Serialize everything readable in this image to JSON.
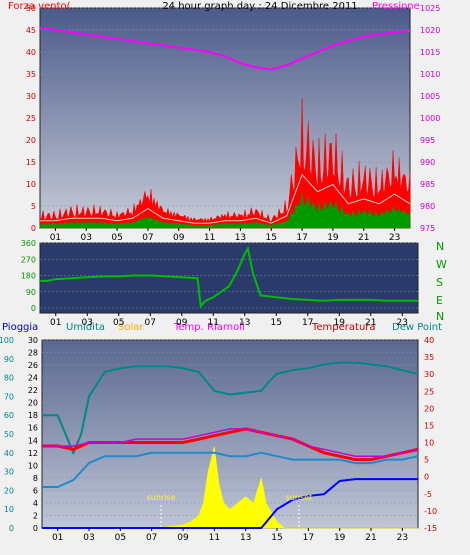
{
  "header": {
    "title": "24 hour graph day : 24 Dicembre 2011",
    "left_label": "Forza vento(",
    "right_label": "Pressione"
  },
  "colors": {
    "wind_speed": "#ff0000",
    "wind_gust": "#cccccc",
    "wind_avg": "#009900",
    "pressure": "#ff00ff",
    "wind_dir": "#00bb00",
    "rain": "#0000ff",
    "humidity": "#008888",
    "solar": "#ffff00",
    "apparent_temp": "#ff0000",
    "temperature": "#cc00cc",
    "dew_point": "#2288cc",
    "panel_bg_top": "#4a5a8a",
    "panel_bg_bottom": "#c8ccd8"
  },
  "x_ticks": [
    "01",
    "03",
    "05",
    "07",
    "09",
    "11",
    "13",
    "15",
    "17",
    "19",
    "21",
    "23"
  ],
  "chart_data": [
    {
      "type": "line",
      "name": "wind_pressure",
      "yleft_ticks": [
        "0",
        "5",
        "10",
        "15",
        "20",
        "25",
        "30",
        "35",
        "40",
        "45",
        "50"
      ],
      "yleft_lim": [
        0,
        50
      ],
      "yright_ticks": [
        "975",
        "980",
        "985",
        "990",
        "995",
        "1000",
        "1005",
        "1010",
        "1015",
        "1020",
        "1025"
      ],
      "yright_lim": [
        975,
        1025
      ],
      "series": [
        {
          "name": "Forza vento(",
          "axis": "left",
          "x": [
            0,
            1,
            2,
            3,
            4,
            5,
            6,
            7,
            8,
            9,
            10,
            11,
            12,
            13,
            14,
            15,
            16,
            17,
            18,
            19,
            20,
            21,
            22,
            23,
            24
          ],
          "values": [
            3,
            3,
            4,
            4,
            4,
            3,
            4,
            8,
            4,
            3,
            2,
            2,
            3,
            3,
            4,
            2,
            5,
            22,
            15,
            18,
            10,
            12,
            10,
            14,
            10
          ]
        },
        {
          "name": "Pressione",
          "axis": "right",
          "x": [
            0,
            1,
            2,
            3,
            4,
            5,
            6,
            7,
            8,
            9,
            10,
            11,
            12,
            13,
            14,
            15,
            16,
            17,
            18,
            19,
            20,
            21,
            22,
            23,
            24
          ],
          "values": [
            1020.5,
            1020,
            1019.5,
            1019,
            1018.5,
            1018,
            1017.5,
            1017,
            1016.5,
            1016,
            1015.5,
            1015,
            1014,
            1012.5,
            1011.5,
            1011,
            1012,
            1013.5,
            1015,
            1016.5,
            1017.5,
            1018.5,
            1019,
            1019.5,
            1019.8
          ]
        }
      ]
    },
    {
      "type": "line",
      "name": "wind_direction",
      "y_ticks": [
        "0",
        "90",
        "180",
        "270",
        "360"
      ],
      "ylim": [
        0,
        360
      ],
      "compass_labels": [
        "N",
        "W",
        "S",
        "E",
        "N"
      ],
      "series": [
        {
          "name": "direction",
          "x": [
            0,
            0.5,
            1,
            2,
            3,
            4,
            5,
            6,
            7,
            8,
            9,
            10,
            10.2,
            10.5,
            11,
            12,
            12.5,
            13,
            13.2,
            13.5,
            14,
            15,
            16,
            17,
            18,
            19,
            20,
            21,
            22,
            23,
            24
          ],
          "values": [
            150,
            150,
            160,
            165,
            170,
            175,
            175,
            180,
            180,
            175,
            170,
            165,
            10,
            40,
            60,
            120,
            200,
            300,
            330,
            200,
            70,
            60,
            50,
            45,
            40,
            45,
            45,
            45,
            40,
            40,
            40
          ]
        }
      ]
    },
    {
      "type": "line",
      "name": "temp_humidity_rain_solar",
      "legend": [
        "Pioggia",
        "Umidita",
        "Solar",
        "Temp. Riarnoli",
        "Temperatura",
        "Dew Point"
      ],
      "yleft_outer_ticks": [
        "0",
        "10",
        "20",
        "30",
        "40",
        "50",
        "60",
        "70",
        "80",
        "90",
        "100"
      ],
      "yleft_outer_lim": [
        0,
        100
      ],
      "yleft_inner_ticks": [
        "0",
        "2",
        "4",
        "6",
        "8",
        "10",
        "12",
        "14",
        "16",
        "18",
        "20",
        "22",
        "24",
        "26",
        "28",
        "30"
      ],
      "yleft_inner_lim": [
        0,
        30
      ],
      "yright_ticks": [
        "-15",
        "-10",
        "-5",
        "0",
        "5",
        "10",
        "15",
        "20",
        "25",
        "30",
        "35",
        "40"
      ],
      "yright_lim": [
        -15,
        40
      ],
      "annotations": [
        "sunrise",
        "sunset"
      ],
      "series": [
        {
          "name": "Umidita",
          "axis": "outer",
          "x": [
            0,
            0.5,
            1,
            1.5,
            2,
            2.5,
            3,
            4,
            5,
            6,
            7,
            8,
            9,
            10,
            10.5,
            11,
            12,
            13,
            14,
            14.5,
            15,
            16,
            17,
            18,
            19,
            20,
            21,
            22,
            23,
            24
          ],
          "values": [
            60,
            60,
            60,
            50,
            40,
            50,
            70,
            83,
            85,
            86,
            86,
            86,
            85,
            83,
            78,
            73,
            71,
            72,
            73,
            78,
            82,
            84,
            85,
            87,
            88,
            88,
            87,
            86,
            84,
            82
          ]
        },
        {
          "name": "Pioggia",
          "axis": "outer",
          "x": [
            0,
            13,
            14,
            15,
            16,
            17,
            18,
            19,
            20,
            21,
            22,
            23,
            23.5,
            24
          ],
          "values": [
            0,
            0,
            0,
            10,
            15,
            17,
            18,
            25,
            26,
            26,
            26,
            26,
            26,
            26
          ]
        },
        {
          "name": "Temp. Riarnoli",
          "axis": "right",
          "x": [
            0,
            1,
            2,
            3,
            4,
            5,
            6,
            7,
            8,
            9,
            10,
            11,
            12,
            13,
            14,
            15,
            16,
            17,
            18,
            19,
            20,
            21,
            22,
            23,
            24
          ],
          "values": [
            9,
            9,
            8,
            10,
            10,
            10,
            10,
            10,
            10,
            10,
            11,
            12,
            13,
            14,
            13,
            12,
            11,
            9,
            7,
            6,
            5,
            5,
            6,
            7,
            8
          ]
        },
        {
          "name": "Temperatura",
          "axis": "right",
          "x": [
            0,
            1,
            2,
            3,
            4,
            5,
            6,
            7,
            8,
            9,
            10,
            11,
            12,
            13,
            14,
            15,
            16,
            17,
            18,
            19,
            20,
            21,
            22,
            23,
            24
          ],
          "values": [
            9,
            9,
            9,
            10,
            10,
            10,
            11,
            11,
            11,
            11,
            12,
            13,
            14,
            14,
            13,
            12,
            11,
            9,
            8,
            7,
            6,
            6,
            6,
            7,
            8
          ]
        },
        {
          "name": "Dew Point",
          "axis": "right",
          "x": [
            0,
            1,
            2,
            3,
            4,
            5,
            6,
            7,
            8,
            9,
            10,
            11,
            12,
            13,
            14,
            15,
            16,
            17,
            18,
            19,
            20,
            21,
            22,
            23,
            24
          ],
          "values": [
            -3,
            -3,
            -1,
            4,
            6,
            6,
            6,
            7,
            7,
            7,
            7,
            7,
            6,
            6,
            7,
            6,
            5,
            5,
            5,
            5,
            4,
            4,
            5,
            5,
            6
          ]
        },
        {
          "name": "Solar",
          "axis": "inner",
          "x": [
            0,
            7.6,
            8,
            9,
            9.5,
            10,
            10.3,
            10.6,
            11,
            11.3,
            11.6,
            12,
            12.5,
            13,
            13.5,
            14,
            14.3,
            15,
            15.5,
            24
          ],
          "values": [
            0,
            0,
            0.2,
            0.5,
            1,
            2,
            4,
            9,
            13,
            7,
            4,
            3,
            4,
            5,
            4,
            8,
            4,
            1,
            0,
            0
          ]
        }
      ]
    }
  ]
}
